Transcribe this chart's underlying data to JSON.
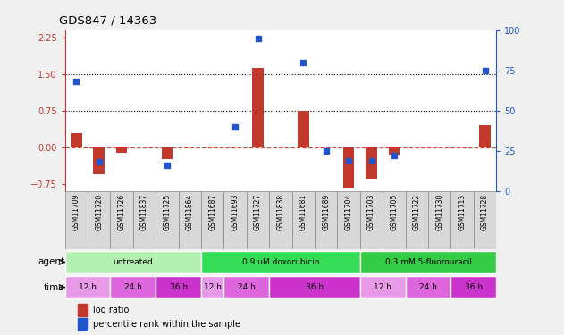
{
  "title": "GDS847 / 14363",
  "samples": [
    "GSM11709",
    "GSM11720",
    "GSM11726",
    "GSM11837",
    "GSM11725",
    "GSM11864",
    "GSM11687",
    "GSM11693",
    "GSM11727",
    "GSM11838",
    "GSM11681",
    "GSM11689",
    "GSM11704",
    "GSM11703",
    "GSM11705",
    "GSM11722",
    "GSM11730",
    "GSM11713",
    "GSM11728"
  ],
  "log_ratio": [
    0.28,
    -0.55,
    -0.12,
    0.0,
    -0.25,
    0.02,
    0.02,
    0.02,
    1.62,
    0.0,
    0.75,
    0.0,
    -0.85,
    -0.65,
    -0.18,
    0.0,
    0.0,
    0.0,
    0.45
  ],
  "pct_rank": [
    68,
    18,
    0,
    0,
    16,
    0,
    0,
    40,
    95,
    0,
    80,
    25,
    19,
    19,
    22,
    0,
    0,
    0,
    75
  ],
  "bar_color": "#c0392b",
  "dot_color": "#2255cc",
  "ylim_left": [
    -0.9,
    2.4
  ],
  "ylim_right": [
    0,
    100
  ],
  "yticks_left": [
    -0.75,
    0,
    0.75,
    1.5,
    2.25
  ],
  "yticks_right": [
    0,
    25,
    50,
    75,
    100
  ],
  "hlines": [
    0.75,
    1.5
  ],
  "agents": [
    {
      "label": "untreated",
      "start": 0,
      "end": 6,
      "color": "#b2f0b2"
    },
    {
      "label": "0.9 uM doxorubicin",
      "start": 6,
      "end": 13,
      "color": "#33dd55"
    },
    {
      "label": "0.3 mM 5-fluorouracil",
      "start": 13,
      "end": 19,
      "color": "#33cc44"
    }
  ],
  "times": [
    {
      "label": "12 h",
      "start": 0,
      "end": 2,
      "color": "#e899e8"
    },
    {
      "label": "24 h",
      "start": 2,
      "end": 4,
      "color": "#dd66dd"
    },
    {
      "label": "36 h",
      "start": 4,
      "end": 6,
      "color": "#cc33cc"
    },
    {
      "label": "12 h",
      "start": 6,
      "end": 7,
      "color": "#e899e8"
    },
    {
      "label": "24 h",
      "start": 7,
      "end": 9,
      "color": "#dd66dd"
    },
    {
      "label": "36 h",
      "start": 9,
      "end": 13,
      "color": "#cc33cc"
    },
    {
      "label": "12 h",
      "start": 13,
      "end": 15,
      "color": "#e899e8"
    },
    {
      "label": "24 h",
      "start": 15,
      "end": 17,
      "color": "#dd66dd"
    },
    {
      "label": "36 h",
      "start": 17,
      "end": 19,
      "color": "#cc33cc"
    }
  ],
  "ylabel_left_color": "#c0392b",
  "ylabel_right_color": "#2255cc",
  "bg_color": "#f0f0f0",
  "plot_bg": "#ffffff",
  "label_bg": "#d8d8d8"
}
